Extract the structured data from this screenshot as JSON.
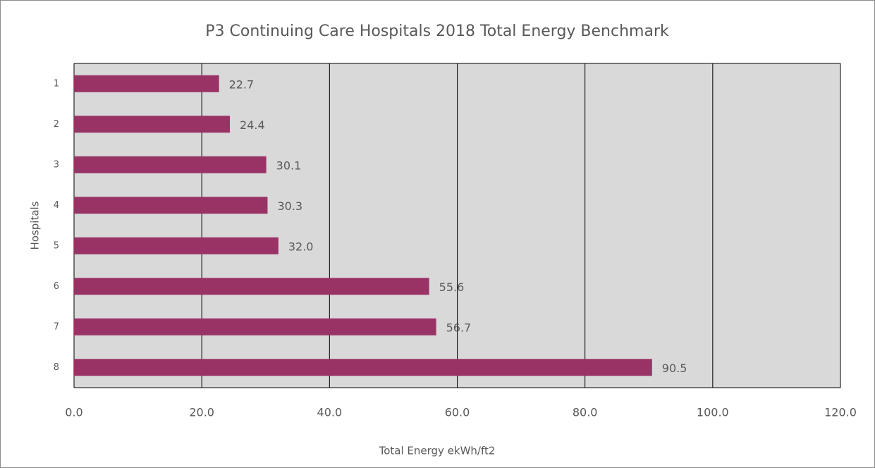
{
  "chart_data": {
    "type": "hbar",
    "title": "P3 Continuing Care Hospitals 2018 Total Energy Benchmark",
    "x_label": "Total Energy ekWh/ft2",
    "y_label": "Hospitals",
    "categories": [
      "1",
      "2",
      "3",
      "4",
      "5",
      "6",
      "7",
      "8"
    ],
    "values": [
      22.7,
      24.4,
      30.1,
      30.3,
      32,
      55.6,
      56.7,
      90.5
    ],
    "value_labels": [
      "22.7",
      "24.4",
      "30.1",
      "30.3",
      "32.0",
      "55.6",
      "56.7",
      "90.5"
    ],
    "color": "#993366",
    "xlim": [
      0,
      120
    ],
    "xticks": [
      {
        "value": 0,
        "label": "0.0"
      },
      {
        "value": 20,
        "label": "20.0"
      },
      {
        "value": 40,
        "label": "40.0"
      },
      {
        "value": 60,
        "label": "60.0"
      },
      {
        "value": 80,
        "label": "80.0"
      },
      {
        "value": 100,
        "label": "100.0"
      },
      {
        "value": 120,
        "label": "120.0"
      }
    ],
    "grid": true
  }
}
